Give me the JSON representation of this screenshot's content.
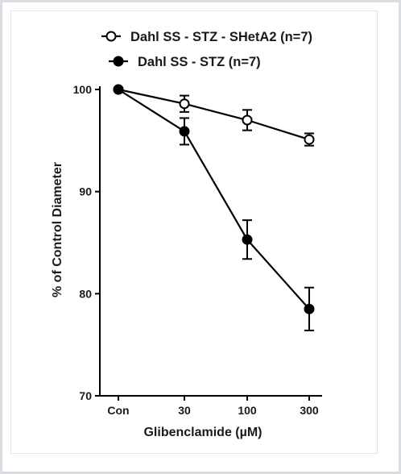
{
  "chart_data": {
    "type": "line",
    "categories": [
      "Con",
      "30",
      "100",
      "300"
    ],
    "xlabel": "Glibenclamide (µM)",
    "ylabel": "% of Control Diameter",
    "ylim": [
      70,
      100
    ],
    "yticks": [
      70,
      80,
      90,
      100
    ],
    "legend_position": "top",
    "grid": false,
    "series": [
      {
        "name": "Dahl SS - STZ - SHetA2 (n=7)",
        "marker": "open-circle",
        "values": [
          100,
          98.6,
          97.0,
          95.1
        ],
        "errors": [
          0,
          0.8,
          1.0,
          0.6
        ]
      },
      {
        "name": "Dahl SS - STZ (n=7)",
        "marker": "filled-circle",
        "values": [
          100,
          95.9,
          85.3,
          78.5
        ],
        "errors": [
          0,
          1.3,
          1.9,
          2.1
        ]
      }
    ]
  }
}
